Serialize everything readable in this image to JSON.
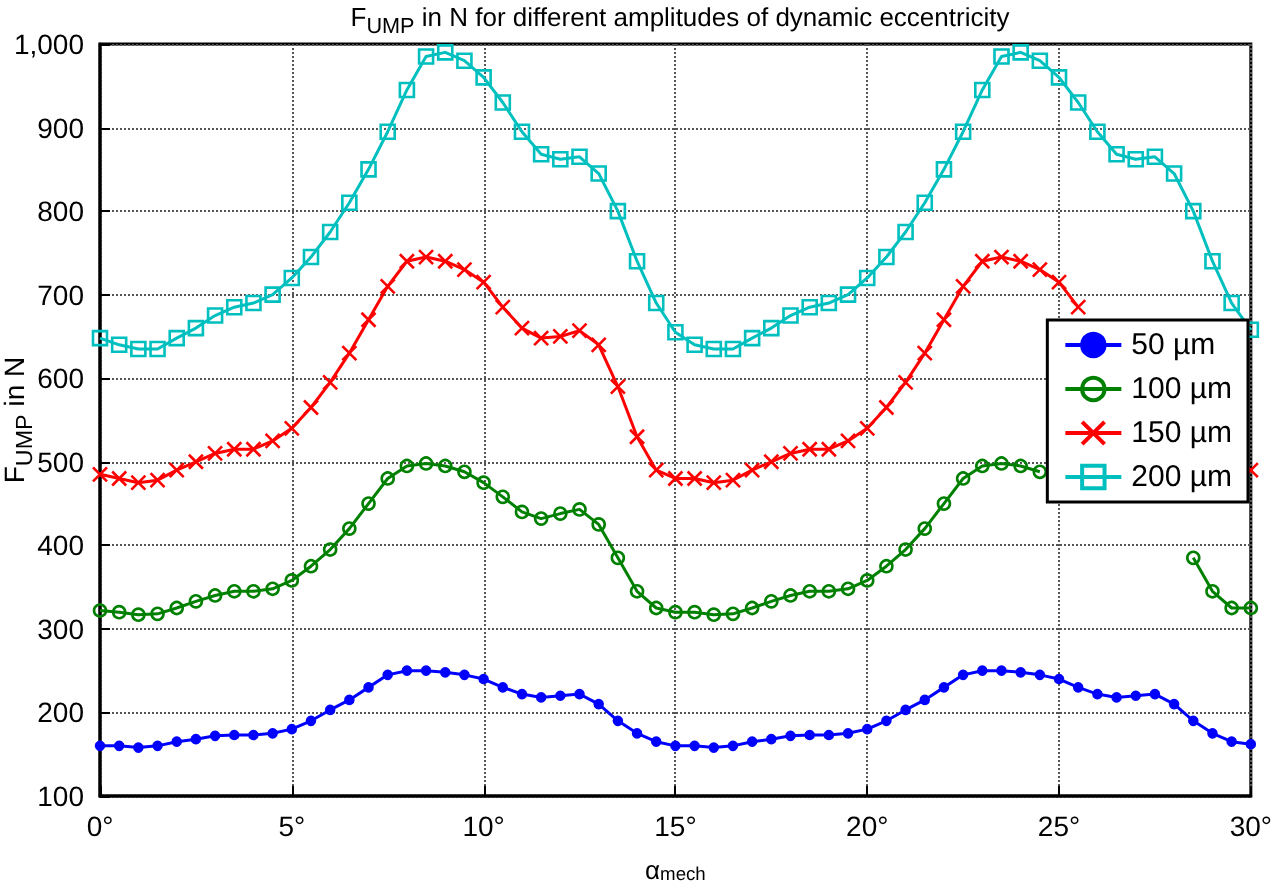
{
  "chart_data": {
    "type": "line",
    "title": "F$_{UMP}$ in N for different amplitudes of dynamic eccentricity",
    "xlabel": "α$_{mech}$",
    "ylabel": "F$_{UMP}$ in N",
    "x": [
      0,
      0.5,
      1,
      1.5,
      2,
      2.5,
      3,
      3.5,
      4,
      4.5,
      5,
      5.5,
      6,
      6.5,
      7,
      7.5,
      8,
      8.5,
      9,
      9.5,
      10,
      10.5,
      11,
      11.5,
      12,
      12.5,
      13,
      13.5,
      14,
      14.5,
      15,
      15.5,
      16,
      16.5,
      17,
      17.5,
      18,
      18.5,
      19,
      19.5,
      20,
      20.5,
      21,
      21.5,
      22,
      22.5,
      23,
      23.5,
      24,
      24.5,
      25,
      25.5,
      26,
      26.5,
      27,
      27.5,
      28,
      28.5,
      29,
      29.5,
      30
    ],
    "series": [
      {
        "name": "50 µm",
        "color": "#0000ff",
        "marker": "circle",
        "values": [
          160,
          160,
          158,
          160,
          165,
          168,
          172,
          173,
          173,
          175,
          180,
          190,
          203,
          215,
          230,
          245,
          250,
          250,
          248,
          245,
          240,
          230,
          222,
          218,
          220,
          222,
          210,
          190,
          175,
          165,
          160,
          160,
          158,
          160,
          165,
          168,
          172,
          173,
          173,
          175,
          180,
          190,
          203,
          215,
          230,
          245,
          250,
          250,
          248,
          245,
          240,
          230,
          222,
          218,
          220,
          222,
          210,
          190,
          175,
          165,
          162
        ]
      },
      {
        "name": "100 µm",
        "color": "#008000",
        "marker": "circle",
        "values": [
          322,
          320,
          317,
          318,
          325,
          333,
          340,
          345,
          345,
          348,
          358,
          375,
          395,
          420,
          450,
          480,
          495,
          498,
          495,
          488,
          475,
          458,
          440,
          432,
          438,
          443,
          425,
          385,
          345,
          325,
          320,
          320,
          317,
          318,
          325,
          333,
          340,
          345,
          345,
          348,
          358,
          375,
          395,
          420,
          450,
          480,
          495,
          498,
          495,
          488,
          null,
          null,
          null,
          null,
          null,
          null,
          null,
          385,
          345,
          325,
          325
        ]
      },
      {
        "name": "150 µm",
        "color": "#ff0000",
        "marker": "cross",
        "values": [
          485,
          480,
          475,
          478,
          490,
          500,
          510,
          515,
          515,
          525,
          540,
          565,
          595,
          630,
          670,
          710,
          740,
          745,
          740,
          730,
          715,
          685,
          660,
          648,
          650,
          657,
          640,
          590,
          530,
          490,
          480,
          480,
          475,
          478,
          490,
          500,
          510,
          515,
          515,
          525,
          540,
          565,
          595,
          630,
          670,
          710,
          740,
          745,
          740,
          730,
          715,
          685,
          null,
          null,
          null,
          null,
          null,
          null,
          null,
          null,
          490
        ]
      },
      {
        "name": "200 µm",
        "color": "#00bfbf",
        "marker": "square",
        "values": [
          648,
          640,
          635,
          635,
          648,
          660,
          675,
          685,
          690,
          700,
          720,
          745,
          775,
          810,
          850,
          895,
          945,
          985,
          990,
          980,
          960,
          930,
          895,
          868,
          862,
          865,
          845,
          800,
          740,
          690,
          655,
          640,
          635,
          635,
          648,
          660,
          675,
          685,
          690,
          700,
          720,
          745,
          775,
          810,
          850,
          895,
          945,
          985,
          990,
          980,
          960,
          930,
          895,
          868,
          862,
          865,
          845,
          800,
          740,
          690,
          658
        ]
      }
    ],
    "xlim": [
      0,
      30
    ],
    "xticks": [
      {
        "value": 0,
        "label": "0°"
      },
      {
        "value": 5,
        "label": "5°"
      },
      {
        "value": 10,
        "label": "10°"
      },
      {
        "value": 15,
        "label": "15°"
      },
      {
        "value": 20,
        "label": "20°"
      },
      {
        "value": 25,
        "label": "25°"
      },
      {
        "value": 30,
        "label": "30°"
      }
    ],
    "ylim": [
      100,
      1000
    ],
    "yticks": [
      100,
      200,
      300,
      400,
      500,
      600,
      700,
      800,
      900,
      {
        "value": 1000,
        "label": "1,000"
      }
    ],
    "grid": true,
    "legend": "right",
    "line_style": "solid"
  }
}
